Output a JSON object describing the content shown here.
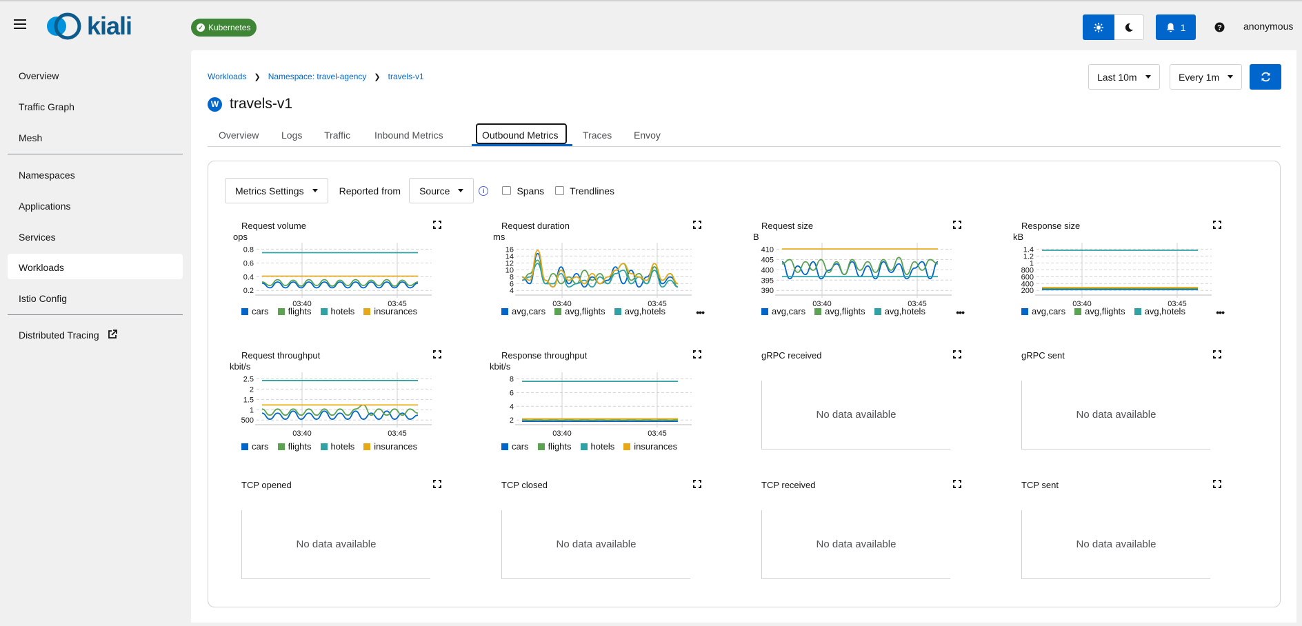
{
  "header": {
    "logo_text": "kiali",
    "cluster_badge": "Kubernetes",
    "notifications_count": "1",
    "user": "anonymous"
  },
  "sidebar": {
    "items": [
      {
        "label": "Overview"
      },
      {
        "label": "Traffic Graph"
      },
      {
        "label": "Mesh"
      },
      {
        "label": "Namespaces"
      },
      {
        "label": "Applications"
      },
      {
        "label": "Services"
      },
      {
        "label": "Workloads",
        "active": true
      },
      {
        "label": "Istio Config"
      },
      {
        "label": "Distributed Tracing",
        "external": true
      }
    ]
  },
  "breadcrumb": [
    "Workloads",
    "Namespace: travel-agency",
    "travels-v1"
  ],
  "page": {
    "badge": "W",
    "title": "travels-v1"
  },
  "controls": {
    "duration": "Last 10m",
    "refresh_interval": "Every 1m"
  },
  "tabs": [
    "Overview",
    "Logs",
    "Traffic",
    "Inbound Metrics",
    "Outbound Metrics",
    "Traces",
    "Envoy"
  ],
  "active_tab": "Outbound Metrics",
  "toolbar": {
    "metrics_settings": "Metrics Settings",
    "reported_from_label": "Reported from",
    "reported_from_value": "Source",
    "spans_label": "Spans",
    "trendlines_label": "Trendlines"
  },
  "colors": {
    "cars": "#0066cc",
    "flights": "#5ba352",
    "hotels": "#2ea2a4",
    "insurances": "#e6a817",
    "accent": "#0066cc"
  },
  "no_data_text": "No data available",
  "chart_data": [
    {
      "id": "request-volume",
      "type": "line",
      "title": "Request volume",
      "unit": "ops",
      "x_ticks": [
        "03:40",
        "03:45"
      ],
      "y_ticks": [
        "0.8",
        "0.6",
        "0.4",
        "0.2"
      ],
      "ylim": [
        0.1,
        0.9
      ],
      "series": [
        {
          "name": "cars",
          "color": "#0066cc",
          "values": [
            0.28,
            0.2,
            0.3,
            0.2,
            0.3,
            0.2,
            0.3,
            0.2,
            0.3,
            0.2,
            0.3,
            0.2,
            0.3,
            0.2,
            0.3,
            0.2,
            0.3,
            0.2,
            0.3,
            0.2,
            0.28
          ]
        },
        {
          "name": "flights",
          "color": "#5ba352",
          "values": [
            0.3,
            0.24,
            0.34,
            0.24,
            0.33,
            0.23,
            0.34,
            0.24,
            0.34,
            0.23,
            0.33,
            0.24,
            0.34,
            0.24,
            0.33,
            0.24,
            0.34,
            0.23,
            0.33,
            0.24,
            0.3
          ]
        },
        {
          "name": "hotels",
          "color": "#2ea2a4",
          "values": [
            0.8,
            0.8,
            0.8,
            0.8,
            0.8,
            0.8,
            0.8,
            0.8,
            0.8,
            0.8,
            0.8,
            0.8,
            0.8,
            0.8,
            0.8,
            0.8,
            0.8,
            0.8,
            0.8,
            0.8,
            0.8
          ]
        },
        {
          "name": "insurances",
          "color": "#e6a817",
          "values": [
            0.4,
            0.4,
            0.4,
            0.4,
            0.4,
            0.4,
            0.4,
            0.4,
            0.4,
            0.4,
            0.4,
            0.4,
            0.4,
            0.4,
            0.4,
            0.4,
            0.4,
            0.4,
            0.4,
            0.4,
            0.4
          ]
        }
      ],
      "legend": [
        "cars",
        "flights",
        "hotels",
        "insurances"
      ],
      "kebab": false
    },
    {
      "id": "request-duration",
      "type": "line",
      "title": "Request duration",
      "unit": "ms",
      "x_ticks": [
        "03:40",
        "03:45"
      ],
      "y_ticks": [
        "16",
        "14",
        "12",
        "10",
        "8",
        "6",
        "4"
      ],
      "ylim": [
        3,
        17
      ],
      "series": [
        {
          "name": "avg,cars",
          "color": "#0066cc",
          "values": [
            8,
            6,
            15,
            7,
            5,
            11,
            6,
            9,
            5,
            8,
            6,
            7,
            11,
            6,
            10,
            5,
            8,
            11,
            6,
            8,
            6
          ]
        },
        {
          "name": "avg,flights",
          "color": "#5ba352",
          "values": [
            7,
            9,
            13,
            6,
            9,
            6,
            8,
            6,
            10,
            7,
            9,
            6,
            10,
            12,
            7,
            9,
            6,
            11,
            7,
            9,
            5
          ]
        },
        {
          "name": "avg,hotels",
          "color": "#2ea2a4",
          "values": [
            7,
            8,
            12,
            6,
            6,
            9,
            5,
            6,
            7,
            5,
            8,
            6,
            9,
            10,
            6,
            8,
            6,
            10,
            5,
            7,
            5
          ]
        },
        {
          "name": "avg,insurances",
          "color": "#e6a817",
          "values": [
            8,
            7,
            16,
            7,
            5,
            10,
            7,
            8,
            6,
            9,
            6,
            8,
            10,
            12,
            9,
            8,
            7,
            12,
            7,
            9,
            6
          ]
        }
      ],
      "legend": [
        "avg,cars",
        "avg,flights",
        "avg,hotels"
      ],
      "kebab": true
    },
    {
      "id": "request-size",
      "type": "line",
      "title": "Request size",
      "unit": "B",
      "x_ticks": [
        "03:40",
        "03:45"
      ],
      "y_ticks": [
        "410",
        "405",
        "400",
        "395",
        "390"
      ],
      "ylim": [
        389,
        411
      ],
      "series": [
        {
          "name": "avg,cars",
          "color": "#0066cc",
          "values": [
            404,
            396,
            402,
            398,
            404,
            396,
            400,
            403,
            398,
            404,
            397,
            402,
            396,
            404,
            399,
            403,
            396,
            401,
            404,
            396,
            404
          ]
        },
        {
          "name": "avg,flights",
          "color": "#5ba352",
          "values": [
            403,
            405,
            399,
            404,
            400,
            405,
            399,
            404,
            398,
            405,
            400,
            404,
            399,
            405,
            400,
            406,
            398,
            404,
            400,
            405,
            403
          ]
        },
        {
          "name": "avg,hotels",
          "color": "#2ea2a4",
          "values": [
            397,
            397,
            397,
            397,
            397,
            397,
            397,
            397,
            397,
            397,
            397,
            397,
            397,
            397,
            397,
            397,
            397,
            397,
            397,
            397,
            397
          ]
        },
        {
          "name": "avg,insurances",
          "color": "#e6a817",
          "values": [
            410,
            410,
            410,
            410,
            410,
            410,
            410,
            410,
            410,
            410,
            410,
            410,
            410,
            410,
            410,
            410,
            410,
            410,
            410,
            410,
            410
          ]
        }
      ],
      "legend": [
        "avg,cars",
        "avg,flights",
        "avg,hotels"
      ],
      "kebab": true
    },
    {
      "id": "response-size",
      "type": "line",
      "title": "Response size",
      "unit": "kB",
      "x_ticks": [
        "03:40",
        "03:45"
      ],
      "y_ticks": [
        "1.4",
        "1.2",
        "1",
        "800",
        "600",
        "400",
        "200"
      ],
      "ylim": [
        0.12,
        1.48
      ],
      "series": [
        {
          "name": "avg,cars",
          "color": "#0066cc",
          "values": [
            0.24,
            0.24,
            0.24,
            0.24,
            0.24,
            0.24,
            0.24,
            0.24,
            0.24,
            0.24,
            0.24,
            0.24,
            0.24,
            0.24,
            0.24,
            0.24,
            0.24,
            0.24,
            0.24,
            0.24,
            0.24
          ]
        },
        {
          "name": "avg,flights",
          "color": "#5ba352",
          "values": [
            0.27,
            0.27,
            0.27,
            0.27,
            0.27,
            0.27,
            0.27,
            0.27,
            0.27,
            0.27,
            0.27,
            0.27,
            0.27,
            0.27,
            0.27,
            0.27,
            0.27,
            0.27,
            0.27,
            0.27,
            0.27
          ]
        },
        {
          "name": "avg,hotels",
          "color": "#2ea2a4",
          "values": [
            1.38,
            1.38,
            1.38,
            1.38,
            1.38,
            1.38,
            1.38,
            1.38,
            1.38,
            1.38,
            1.38,
            1.38,
            1.38,
            1.38,
            1.38,
            1.38,
            1.38,
            1.38,
            1.38,
            1.38,
            1.38
          ]
        },
        {
          "name": "avg,insurances",
          "color": "#e6a817",
          "values": [
            0.3,
            0.3,
            0.3,
            0.3,
            0.3,
            0.3,
            0.3,
            0.3,
            0.3,
            0.3,
            0.3,
            0.3,
            0.3,
            0.3,
            0.3,
            0.3,
            0.3,
            0.3,
            0.3,
            0.3,
            0.3
          ]
        }
      ],
      "legend": [
        "avg,cars",
        "avg,flights",
        "avg,hotels"
      ],
      "kebab": true
    },
    {
      "id": "request-throughput",
      "type": "line",
      "title": "Request throughput",
      "unit": "kbit/s",
      "x_ticks": [
        "03:40",
        "03:45"
      ],
      "y_ticks": [
        "2.5",
        "2",
        "1.5",
        "1",
        "500"
      ],
      "ylim": [
        0.4,
        2.7
      ],
      "series": [
        {
          "name": "cars",
          "color": "#0066cc",
          "values": [
            0.9,
            0.6,
            0.9,
            0.6,
            1.0,
            0.6,
            0.9,
            0.6,
            1.0,
            0.6,
            0.9,
            0.6,
            1.0,
            0.6,
            0.9,
            0.6,
            1.0,
            0.6,
            0.9,
            0.6,
            0.8
          ]
        },
        {
          "name": "flights",
          "color": "#5ba352",
          "values": [
            1.1,
            0.8,
            1.1,
            0.8,
            1.1,
            0.8,
            1.1,
            0.8,
            1.1,
            0.8,
            1.1,
            0.8,
            1.1,
            1.3,
            0.8,
            1.1,
            0.8,
            1.1,
            0.8,
            1.1,
            0.9
          ]
        },
        {
          "name": "hotels",
          "color": "#2ea2a4",
          "values": [
            2.5,
            2.5,
            2.5,
            2.5,
            2.5,
            2.5,
            2.5,
            2.5,
            2.5,
            2.5,
            2.5,
            2.5,
            2.5,
            2.5,
            2.5,
            2.5,
            2.5,
            2.5,
            2.5,
            2.5,
            2.5
          ]
        },
        {
          "name": "insurances",
          "color": "#e6a817",
          "values": [
            1.3,
            1.3,
            1.3,
            1.3,
            1.3,
            1.3,
            1.3,
            1.3,
            1.3,
            1.3,
            1.3,
            1.3,
            1.3,
            1.3,
            1.3,
            1.3,
            1.3,
            1.3,
            1.3,
            1.3,
            1.3
          ]
        }
      ],
      "legend": [
        "cars",
        "flights",
        "hotels",
        "insurances"
      ],
      "kebab": false
    },
    {
      "id": "response-throughput",
      "type": "line",
      "title": "Response throughput",
      "unit": "kbit/s",
      "x_ticks": [
        "03:40",
        "03:45"
      ],
      "y_ticks": [
        "8",
        "6",
        "4",
        "2"
      ],
      "ylim": [
        0,
        9.5
      ],
      "series": [
        {
          "name": "cars",
          "color": "#0066cc",
          "values": [
            0.4,
            0.4,
            0.4,
            0.4,
            0.4,
            0.4,
            0.4,
            0.4,
            0.4,
            0.4,
            0.4,
            0.4,
            0.4,
            0.4,
            0.4,
            0.4,
            0.4,
            0.4,
            0.4,
            0.4,
            0.4
          ]
        },
        {
          "name": "flights",
          "color": "#5ba352",
          "values": [
            0.7,
            0.6,
            0.7,
            0.6,
            0.7,
            0.6,
            0.7,
            0.6,
            0.7,
            0.6,
            0.7,
            0.6,
            0.7,
            0.6,
            0.7,
            0.6,
            0.7,
            0.6,
            0.7,
            0.6,
            0.7
          ]
        },
        {
          "name": "hotels",
          "color": "#2ea2a4",
          "values": [
            8.5,
            8.5,
            8.5,
            8.5,
            8.5,
            8.5,
            8.5,
            8.5,
            8.5,
            8.5,
            8.5,
            8.5,
            8.5,
            8.5,
            8.5,
            8.5,
            8.5,
            8.5,
            8.5,
            8.5,
            8.5
          ]
        },
        {
          "name": "insurances",
          "color": "#e6a817",
          "values": [
            0.9,
            0.9,
            0.9,
            0.9,
            0.9,
            0.9,
            0.9,
            0.9,
            0.9,
            0.9,
            0.9,
            0.9,
            0.9,
            0.9,
            0.9,
            0.9,
            0.9,
            0.9,
            0.9,
            0.9,
            0.9
          ]
        }
      ],
      "legend": [
        "cars",
        "flights",
        "hotels",
        "insurances"
      ],
      "kebab": false
    },
    {
      "id": "grpc-received",
      "type": "line",
      "title": "gRPC received",
      "series": [],
      "no_data": true
    },
    {
      "id": "grpc-sent",
      "type": "line",
      "title": "gRPC sent",
      "series": [],
      "no_data": true
    },
    {
      "id": "tcp-opened",
      "type": "line",
      "title": "TCP opened",
      "series": [],
      "no_data": true
    },
    {
      "id": "tcp-closed",
      "type": "line",
      "title": "TCP closed",
      "series": [],
      "no_data": true
    },
    {
      "id": "tcp-received",
      "type": "line",
      "title": "TCP received",
      "series": [],
      "no_data": true
    },
    {
      "id": "tcp-sent",
      "type": "line",
      "title": "TCP sent",
      "series": [],
      "no_data": true
    }
  ]
}
